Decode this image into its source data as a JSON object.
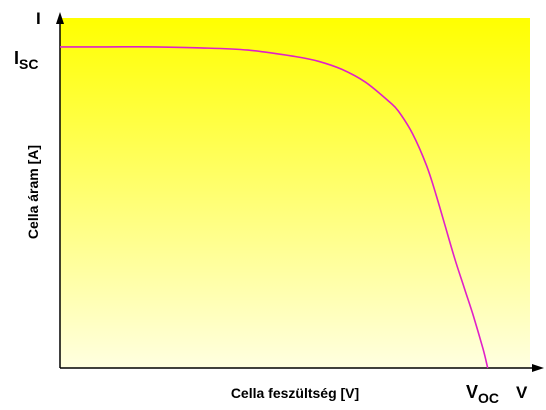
{
  "chart_data": {
    "type": "line",
    "title": "",
    "xlabel": "Cella feszültség [V]",
    "ylabel": "Cella áram [A]",
    "x_axis_symbol": "V",
    "y_axis_symbol": "I",
    "isc_label": {
      "main": "I",
      "sub": "SC"
    },
    "voc_label": {
      "main": "V",
      "sub": "OC"
    },
    "xlim": [
      0,
      1
    ],
    "ylim": [
      0,
      1.09
    ],
    "grid": false,
    "legend": "none",
    "series": [
      {
        "x": [
          0,
          0.1,
          0.2,
          0.3,
          0.4,
          0.5,
          0.55,
          0.6,
          0.65,
          0.7,
          0.72,
          0.75,
          0.78,
          0.8,
          0.82,
          0.84,
          0.86,
          0.88,
          0.9,
          0.91
        ],
        "y": [
          1.0,
          1.0,
          1.0,
          0.997,
          0.99,
          0.97,
          0.955,
          0.93,
          0.89,
          0.83,
          0.8,
          0.73,
          0.63,
          0.54,
          0.44,
          0.34,
          0.25,
          0.16,
          0.06,
          0.0
        ]
      }
    ],
    "colors": {
      "curve": "#e020c8",
      "background_top": "#ffff00",
      "background_bottom": "#ffffe0",
      "axis": "#000000"
    }
  }
}
